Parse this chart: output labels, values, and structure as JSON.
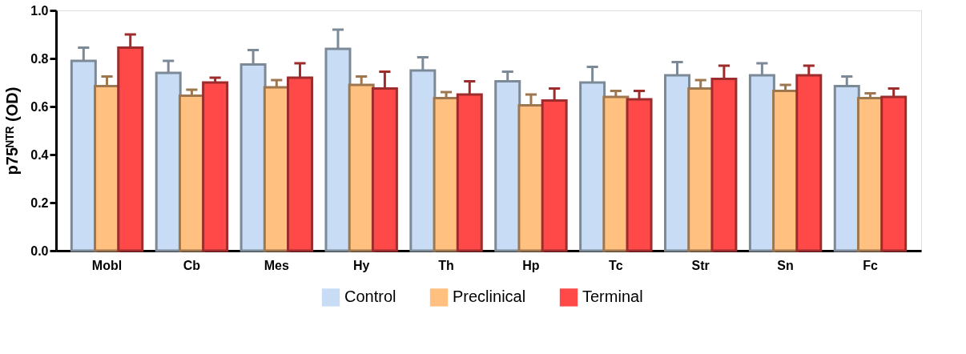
{
  "chart_data": {
    "type": "bar",
    "ylabel": "p75ᴺᵀᴿ (OD)",
    "categories": [
      "Mobl",
      "Cb",
      "Mes",
      "Hy",
      "Th",
      "Hp",
      "Tc",
      "Str",
      "Sn",
      "Fc"
    ],
    "ylim": [
      0,
      1.0
    ],
    "yticks": [
      {
        "value": 0,
        "label": "0.0"
      },
      0.2,
      0.4,
      0.6,
      0.8,
      {
        "value": 1,
        "label": "1.0"
      }
    ],
    "grid": false,
    "legend": "bottom",
    "series": [
      {
        "name": "Control",
        "color": "#c8ddf5",
        "values": [
          0.79,
          0.74,
          0.775,
          0.84,
          0.75,
          0.705,
          0.7,
          0.73,
          0.73,
          0.685
        ],
        "errors": [
          [
            0.79,
            0.845
          ],
          [
            0.74,
            0.79
          ],
          [
            0.775,
            0.835
          ],
          [
            0.84,
            0.92
          ],
          [
            0.75,
            0.805
          ],
          [
            0.705,
            0.745
          ],
          [
            0.7,
            0.765
          ],
          [
            0.73,
            0.785
          ],
          [
            0.73,
            0.78
          ],
          [
            0.685,
            0.725
          ]
        ]
      },
      {
        "name": "Preclinical",
        "color": "#ffc080",
        "values": [
          0.685,
          0.645,
          0.68,
          0.69,
          0.635,
          0.605,
          0.64,
          0.675,
          0.665,
          0.635
        ],
        "errors": [
          [
            0.685,
            0.725
          ],
          [
            0.645,
            0.67
          ],
          [
            0.68,
            0.71
          ],
          [
            0.69,
            0.725
          ],
          [
            0.635,
            0.66
          ],
          [
            0.605,
            0.65
          ],
          [
            0.64,
            0.665
          ],
          [
            0.675,
            0.71
          ],
          [
            0.665,
            0.69
          ],
          [
            0.635,
            0.655
          ]
        ]
      },
      {
        "name": "Terminal",
        "color": "#ff4848",
        "values": [
          0.845,
          0.7,
          0.72,
          0.675,
          0.65,
          0.625,
          0.63,
          0.715,
          0.73,
          0.64
        ],
        "errors": [
          [
            0.845,
            0.9
          ],
          [
            0.7,
            0.72
          ],
          [
            0.72,
            0.78
          ],
          [
            0.675,
            0.745
          ],
          [
            0.65,
            0.705
          ],
          [
            0.625,
            0.675
          ],
          [
            0.63,
            0.665
          ],
          [
            0.715,
            0.77
          ],
          [
            0.73,
            0.77
          ],
          [
            0.64,
            0.675
          ]
        ]
      }
    ]
  }
}
